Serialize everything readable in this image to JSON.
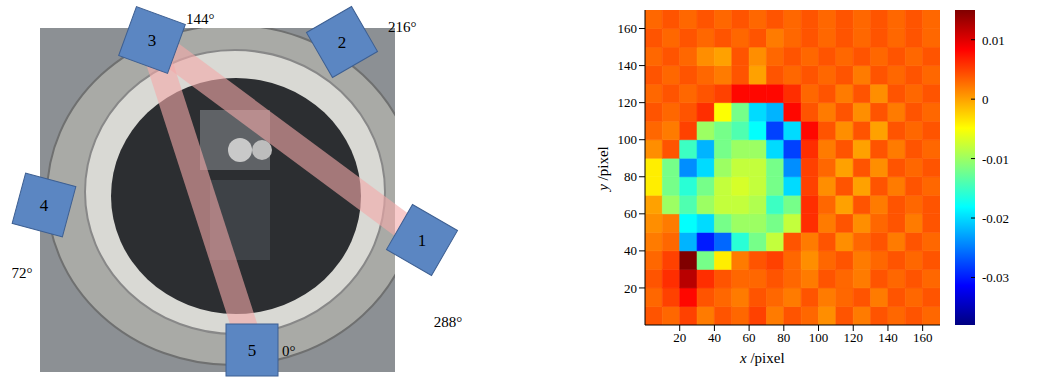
{
  "photo": {
    "sensors": [
      {
        "label": "1",
        "angle": "288°"
      },
      {
        "label": "2",
        "angle": "216°"
      },
      {
        "label": "3",
        "angle": "144°"
      },
      {
        "label": "4",
        "angle": "72°"
      },
      {
        "label": "5",
        "angle": "0°"
      }
    ],
    "beams": [
      [
        "3",
        "1"
      ],
      [
        "3",
        "5"
      ]
    ]
  },
  "chart_data": {
    "type": "heatmap",
    "xlabel": "x /pixel",
    "ylabel": "y /pixel",
    "xlim": [
      0,
      170
    ],
    "ylim": [
      0,
      170
    ],
    "xticks": [
      20,
      40,
      60,
      80,
      100,
      120,
      140,
      160
    ],
    "yticks": [
      20,
      40,
      60,
      80,
      100,
      120,
      140,
      160
    ],
    "x_edges": [
      0,
      10,
      20,
      30,
      40,
      50,
      60,
      70,
      80,
      90,
      100,
      110,
      120,
      130,
      140,
      150,
      160,
      170
    ],
    "y_edges": [
      0,
      10,
      20,
      30,
      40,
      50,
      60,
      70,
      80,
      90,
      100,
      110,
      120,
      130,
      140,
      150,
      160,
      170
    ],
    "cells": [
      [
        0.004,
        0.003,
        0.005,
        0.002,
        0.004,
        0.003,
        0.005,
        0.002,
        0.004,
        0.003,
        0.001,
        0.004,
        0.002,
        0.004,
        0.003,
        0.004,
        0.003
      ],
      [
        0.003,
        0.005,
        0.008,
        0.004,
        0.003,
        0.002,
        0.004,
        0.003,
        0.002,
        0.004,
        0.002,
        0.003,
        0.004,
        0.002,
        0.004,
        0.003,
        0.004
      ],
      [
        0.004,
        0.006,
        0.012,
        0.006,
        0.004,
        0.003,
        0.003,
        0.004,
        0.003,
        0.002,
        0.004,
        0.003,
        0.002,
        0.004,
        0.003,
        0.004,
        0.003
      ],
      [
        0.003,
        0.005,
        0.015,
        -0.012,
        -0.004,
        0.002,
        0.004,
        0.005,
        0.003,
        0.001,
        0.003,
        0.004,
        0.002,
        0.003,
        0.004,
        0.003,
        0.004
      ],
      [
        0.002,
        0.003,
        -0.022,
        -0.03,
        -0.026,
        -0.016,
        -0.012,
        -0.008,
        0.004,
        0.002,
        0.004,
        0.001,
        0.003,
        0.004,
        0.002,
        0.004,
        0.003
      ],
      [
        0.001,
        0.002,
        -0.018,
        -0.02,
        -0.012,
        -0.01,
        -0.01,
        -0.012,
        -0.008,
        0.006,
        0.002,
        0.004,
        0.001,
        0.003,
        0.004,
        0.002,
        0.004
      ],
      [
        0,
        -0.01,
        -0.014,
        -0.01,
        -0.008,
        -0.008,
        -0.009,
        -0.015,
        -0.012,
        0.006,
        0.003,
        0,
        0.004,
        0.002,
        0.004,
        0.003,
        0.004
      ],
      [
        -0.004,
        -0.012,
        -0.016,
        -0.012,
        -0.008,
        -0.007,
        -0.008,
        -0.012,
        -0.02,
        0.005,
        0.001,
        0.004,
        0,
        0.004,
        0.002,
        0.004,
        0.003
      ],
      [
        -0.004,
        -0.012,
        -0.024,
        -0.02,
        -0.01,
        -0.008,
        -0.008,
        -0.012,
        -0.024,
        0.005,
        0.003,
        0,
        0.004,
        0.001,
        0.004,
        0.003,
        0.004
      ],
      [
        0.001,
        0.004,
        -0.015,
        -0.022,
        -0.012,
        -0.01,
        -0.01,
        -0.02,
        -0.028,
        0.006,
        0.002,
        0.004,
        0,
        0.004,
        0.002,
        0.004,
        0.003
      ],
      [
        0.003,
        0.002,
        0.005,
        -0.01,
        -0.012,
        -0.014,
        -0.018,
        -0.028,
        -0.02,
        0.008,
        0.004,
        0.001,
        0.004,
        0,
        0.004,
        0.003,
        0.004
      ],
      [
        0.004,
        0.003,
        0.004,
        0.006,
        -0.005,
        -0.012,
        -0.02,
        -0.022,
        0.008,
        0.004,
        0.002,
        0.004,
        0.001,
        0.004,
        0.002,
        0.004,
        0.003
      ],
      [
        0.003,
        0.004,
        0.003,
        0.004,
        0.005,
        0.008,
        0.008,
        0.008,
        0.006,
        0.003,
        0.004,
        0.002,
        0.004,
        0.001,
        0.004,
        0.003,
        0.004
      ],
      [
        0.004,
        0.003,
        0.004,
        0.003,
        0.002,
        0.004,
        0,
        0.004,
        0.003,
        0.004,
        0.003,
        0.004,
        0.002,
        0.004,
        0.003,
        0.004,
        0.003
      ],
      [
        0.003,
        0.004,
        0.003,
        0.001,
        0,
        0.004,
        0.001,
        0.003,
        0.004,
        0.003,
        0.004,
        0.003,
        0.004,
        0.003,
        0.004,
        0.003,
        0.004
      ],
      [
        0.004,
        0.003,
        0.004,
        0.003,
        0.004,
        0.003,
        0.004,
        0.002,
        0.003,
        0.004,
        0.003,
        0.004,
        0.003,
        0.004,
        0.003,
        0.004,
        0.003
      ],
      [
        0.003,
        0.004,
        0.003,
        0.004,
        0.003,
        0.004,
        0.003,
        0.004,
        0.003,
        0.004,
        0.003,
        0.004,
        0.003,
        0.004,
        0.003,
        0.004,
        0.003
      ]
    ],
    "colorbar": {
      "range": [
        -0.038,
        0.015
      ],
      "ticks": [
        -0.03,
        -0.02,
        -0.01,
        0,
        0.01
      ]
    }
  }
}
